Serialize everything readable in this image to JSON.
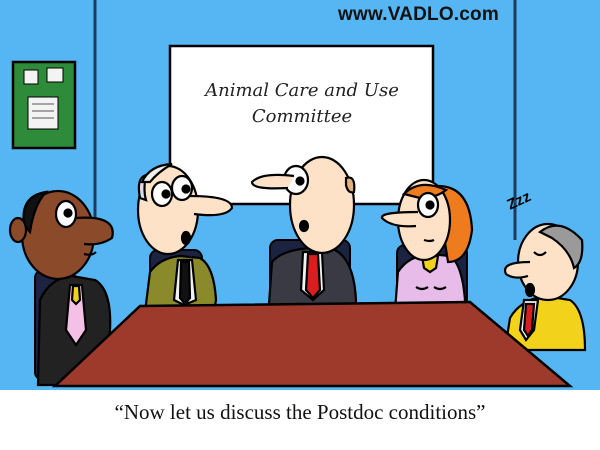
{
  "watermark": {
    "text": "www.VADLO.com"
  },
  "whiteboard": {
    "line1": "Animal Care and Use",
    "line2": "Committee"
  },
  "sleep": {
    "text": "Zzz"
  },
  "caption": {
    "text": "“Now let us discuss the Postdoc conditions”"
  },
  "colors": {
    "wall": "#56b6f3",
    "table": "#9d3a2c",
    "board": "#ffffff",
    "outline": "#000000"
  }
}
